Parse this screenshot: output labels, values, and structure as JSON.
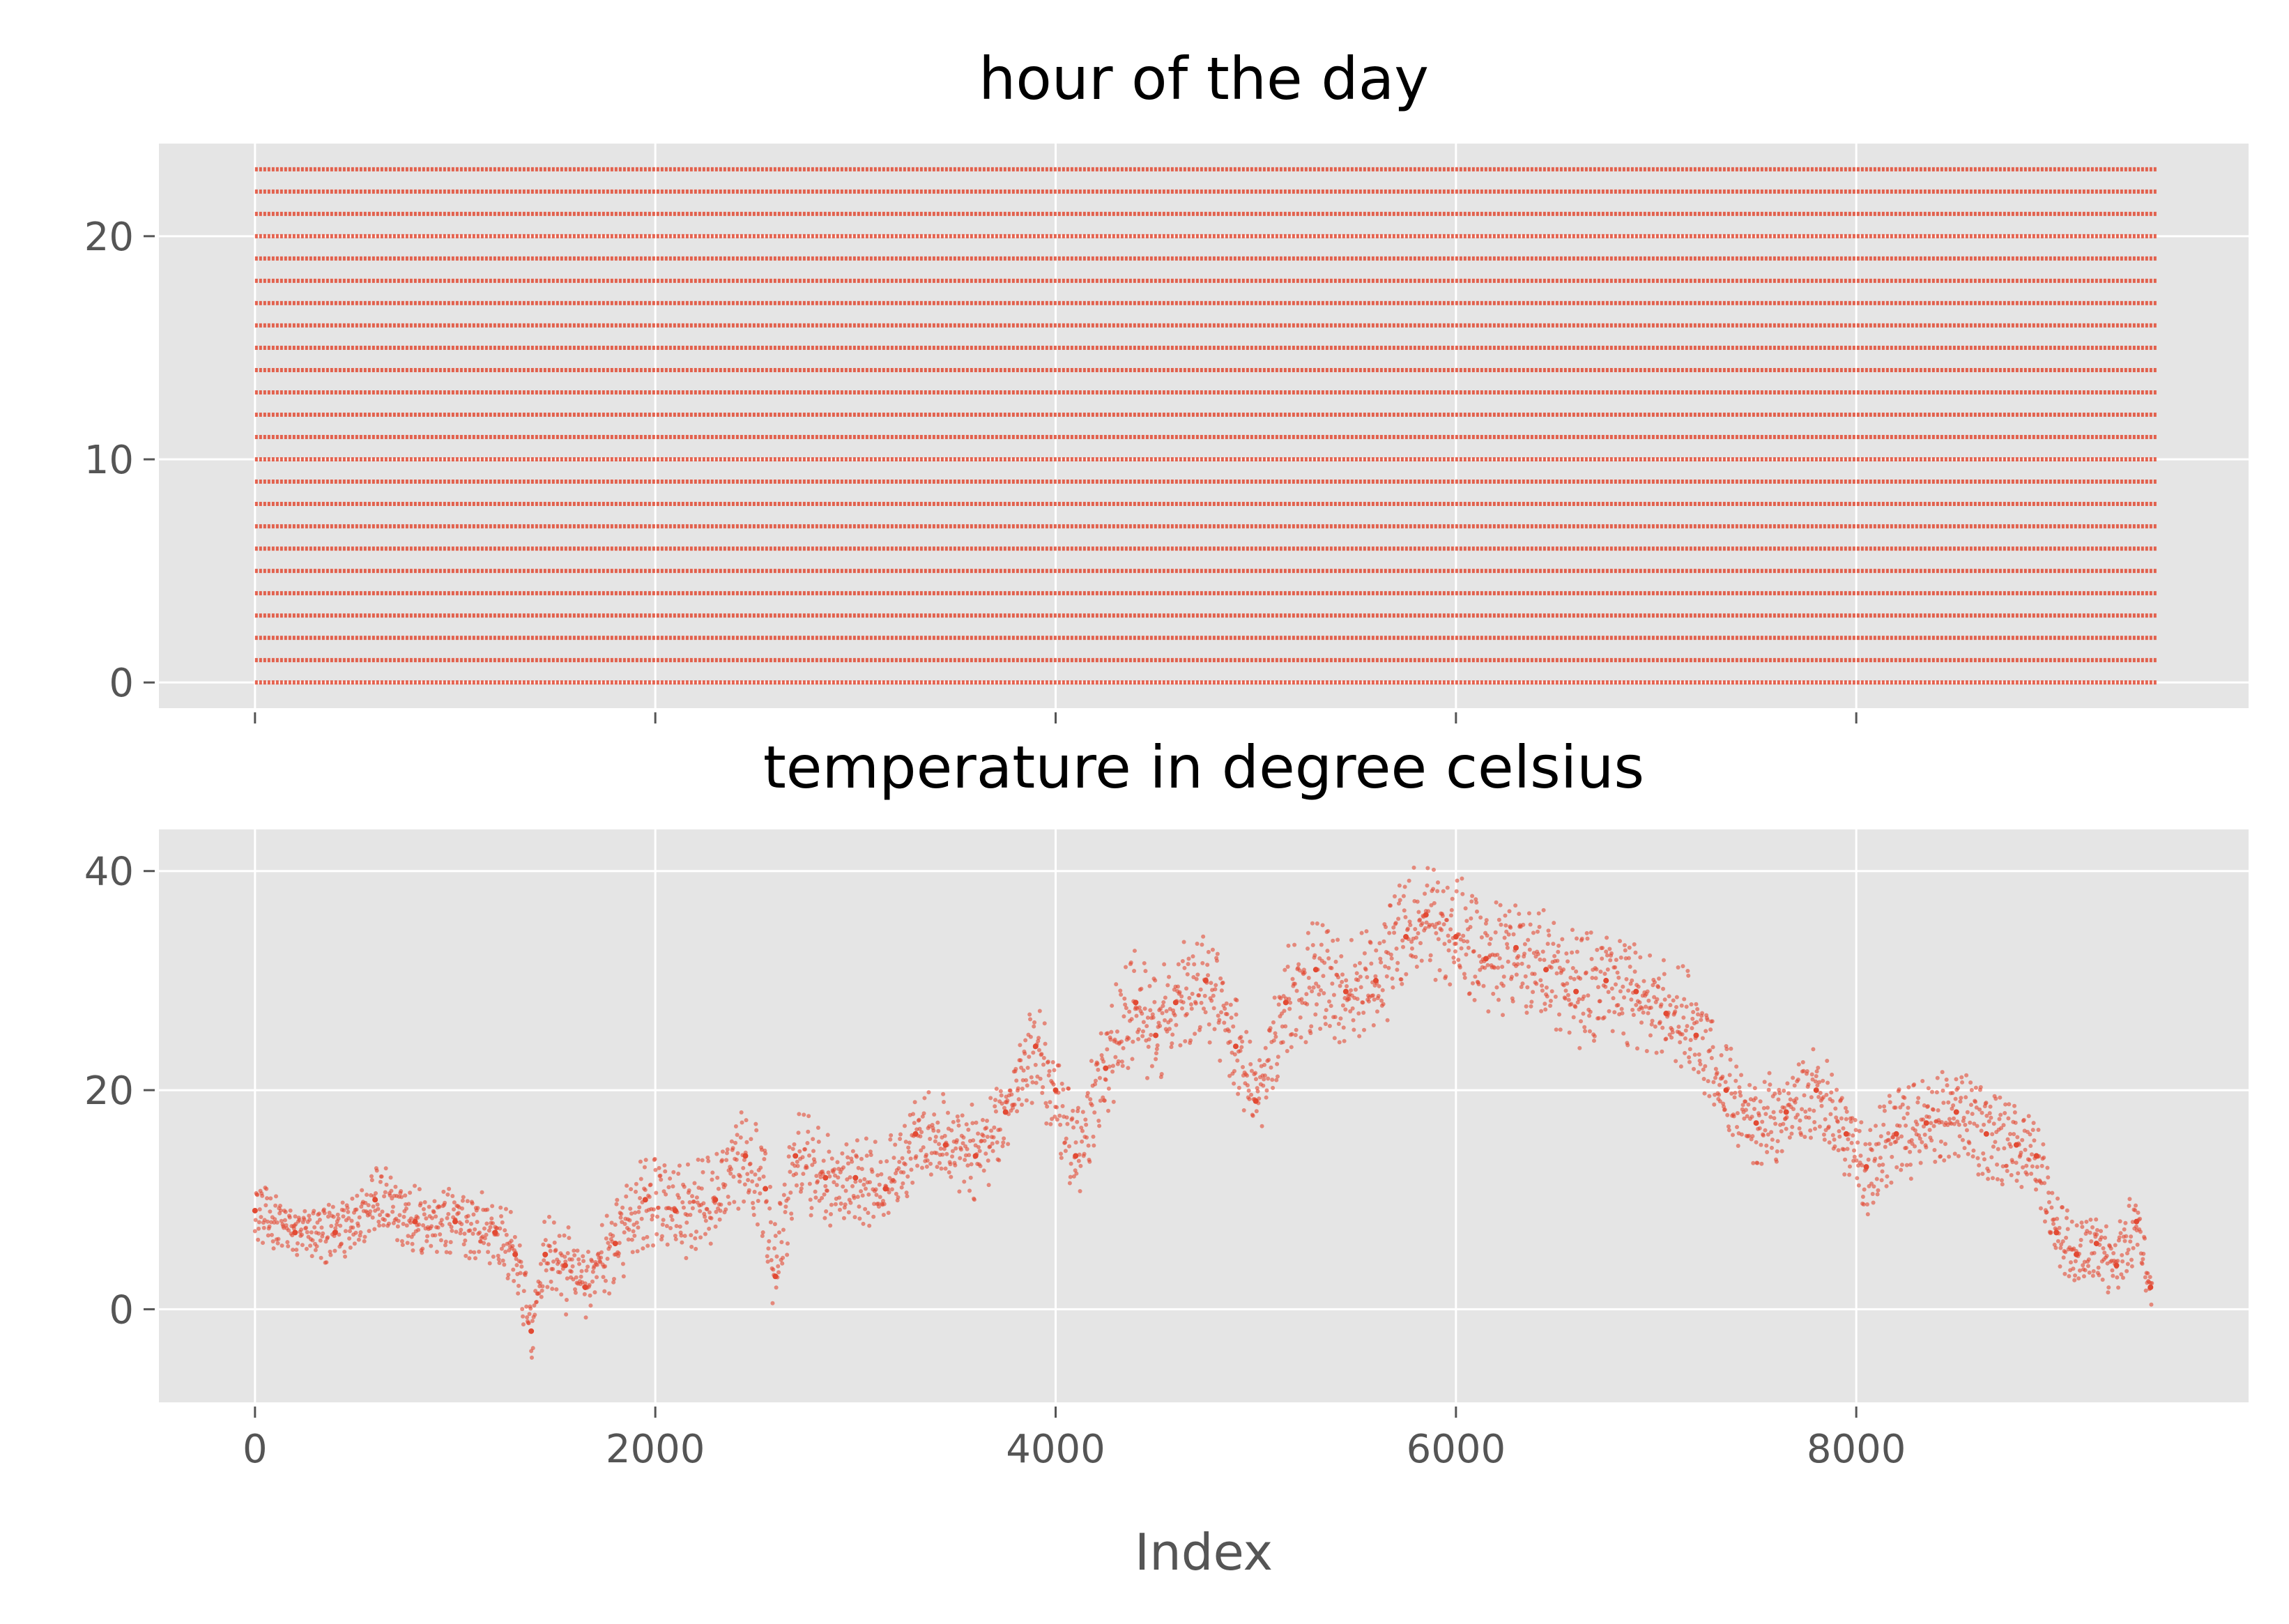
{
  "chart_data": [
    {
      "type": "scatter",
      "title": "hour of the day",
      "xlabel": "",
      "ylabel": "",
      "xlim": [
        -480,
        9960
      ],
      "ylim": [
        -1.15,
        24.15
      ],
      "xticks": [
        0,
        2000,
        4000,
        6000,
        8000
      ],
      "xtick_labels_visible": false,
      "yticks": [
        0,
        10,
        20
      ],
      "ytick_labels": [
        "0",
        "10",
        "20"
      ],
      "grid": true,
      "color": "#e24a33",
      "x_range": [
        0,
        9500
      ],
      "values": [
        0,
        1,
        2,
        3,
        4,
        5,
        6,
        7,
        8,
        9,
        10,
        11,
        12,
        13,
        14,
        15,
        16,
        17,
        18,
        19,
        20,
        21,
        22,
        23
      ]
    },
    {
      "type": "scatter",
      "title": "temperature in degree celsius",
      "xlabel": "Index",
      "ylabel": "",
      "xlim": [
        -480,
        9960
      ],
      "ylim": [
        -8.5,
        43.8
      ],
      "xticks": [
        0,
        2000,
        4000,
        6000,
        8000
      ],
      "xtick_labels": [
        "0",
        "2000",
        "4000",
        "6000",
        "8000"
      ],
      "yticks": [
        0,
        20,
        40
      ],
      "ytick_labels": [
        "0",
        "20",
        "40"
      ],
      "grid": true,
      "color": "#e24a33",
      "x": [
        0,
        200,
        400,
        600,
        800,
        1000,
        1200,
        1300,
        1380,
        1450,
        1550,
        1650,
        1800,
        1950,
        2100,
        2300,
        2450,
        2550,
        2600,
        2700,
        2850,
        3000,
        3150,
        3300,
        3450,
        3600,
        3750,
        3900,
        4000,
        4100,
        4250,
        4400,
        4500,
        4600,
        4750,
        4900,
        5000,
        5150,
        5300,
        5450,
        5600,
        5750,
        5850,
        6000,
        6150,
        6300,
        6450,
        6600,
        6750,
        6900,
        7050,
        7200,
        7350,
        7500,
        7650,
        7800,
        7950,
        8050,
        8200,
        8350,
        8500,
        8650,
        8800,
        8900,
        9000,
        9100,
        9200,
        9300,
        9400,
        9470
      ],
      "y": [
        9,
        7,
        7,
        10,
        8,
        8,
        7,
        5,
        -2,
        5,
        4,
        2,
        6,
        10,
        9,
        10,
        14,
        11,
        3,
        14,
        12,
        12,
        11,
        16,
        15,
        14,
        18,
        24,
        20,
        14,
        22,
        28,
        25,
        28,
        30,
        24,
        19,
        28,
        31,
        29,
        30,
        34,
        36,
        34,
        32,
        33,
        31,
        29,
        30,
        29,
        27,
        25,
        20,
        17,
        18,
        20,
        16,
        13,
        16,
        17,
        18,
        16,
        15,
        14,
        7,
        5,
        6,
        4,
        8,
        2
      ],
      "spread": [
        3,
        2,
        3,
        3,
        3,
        3,
        3,
        3,
        3,
        3,
        4,
        3,
        4,
        4,
        4,
        4,
        4,
        5,
        4,
        4,
        4,
        4,
        4,
        4,
        4,
        4,
        4,
        4,
        5,
        4,
        5,
        5,
        5,
        5,
        5,
        5,
        4,
        5,
        5,
        5,
        5,
        5,
        5,
        5,
        5,
        5,
        5,
        5,
        5,
        5,
        5,
        5,
        4,
        4,
        4,
        4,
        4,
        4,
        4,
        4,
        4,
        4,
        4,
        3,
        3,
        3,
        3,
        3,
        3,
        2
      ]
    }
  ]
}
